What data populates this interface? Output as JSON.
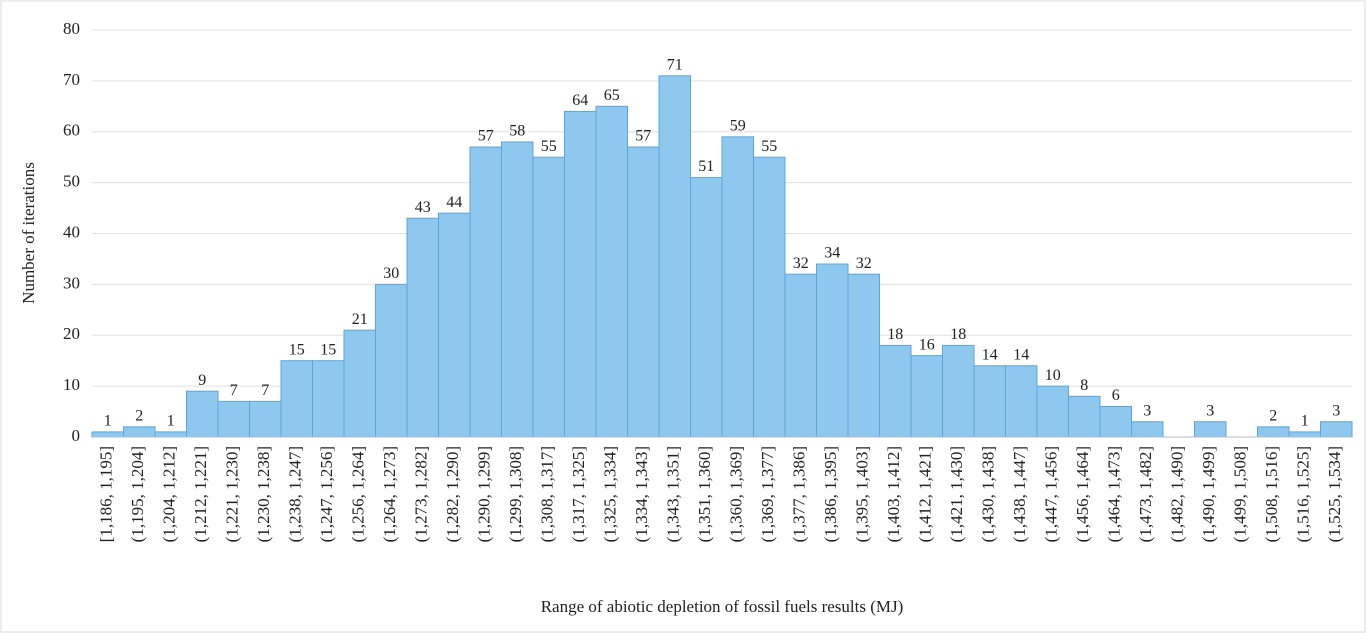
{
  "chart_data": {
    "type": "bar",
    "x_label": "Range of abiotic depletion of fossil fuels results (MJ)",
    "y_label": "Number of iterations",
    "categories": [
      "[1,186, 1,195]",
      "(1,195, 1,204]",
      "(1,204, 1,212]",
      "(1,212, 1,221]",
      "(1,221, 1,230]",
      "(1,230, 1,238]",
      "(1,238, 1,247]",
      "(1,247, 1,256]",
      "(1,256, 1,264]",
      "(1,264, 1,273]",
      "(1,273, 1,282]",
      "(1,282, 1,290]",
      "(1,290, 1,299]",
      "(1,299, 1,308]",
      "(1,308, 1,317]",
      "(1,317, 1,325]",
      "(1,325, 1,334]",
      "(1,334, 1,343]",
      "(1,343, 1,351]",
      "(1,351, 1,360]",
      "(1,360, 1,369]",
      "(1,369, 1,377]",
      "(1,377, 1,386]",
      "(1,386, 1,395]",
      "(1,395, 1,403]",
      "(1,403, 1,412]",
      "(1,412, 1,421]",
      "(1,421, 1,430]",
      "(1,430, 1,438]",
      "(1,438, 1,447]",
      "(1,447, 1,456]",
      "(1,456, 1,464]",
      "(1,464, 1,473]",
      "(1,473, 1,482]",
      "(1,482, 1,490]",
      "(1,490, 1,499]",
      "(1,499, 1,508]",
      "(1,508, 1,516]",
      "(1,516, 1,525]",
      "(1,525, 1,534]"
    ],
    "values": [
      1,
      2,
      1,
      9,
      7,
      7,
      15,
      15,
      21,
      30,
      43,
      44,
      57,
      58,
      55,
      64,
      65,
      57,
      71,
      51,
      59,
      55,
      32,
      34,
      32,
      18,
      16,
      18,
      14,
      14,
      10,
      8,
      6,
      3,
      0,
      3,
      0,
      2,
      1,
      3
    ],
    "value_labels": [
      "1",
      "2",
      "1",
      "9",
      "7",
      "7",
      "15",
      "15",
      "21",
      "30",
      "43",
      "44",
      "57",
      "58",
      "55",
      "64",
      "65",
      "57",
      "71",
      "51",
      "59",
      "55",
      "32",
      "34",
      "32",
      "18",
      "16",
      "18",
      "14",
      "14",
      "10",
      "8",
      "6",
      "3",
      null,
      "3",
      null,
      "2",
      "1",
      "3"
    ],
    "color": "#8ec8ef",
    "ylim": [
      0,
      80
    ],
    "yticks": [
      0,
      10,
      20,
      30,
      40,
      50,
      60,
      70,
      80
    ],
    "grid": true
  }
}
